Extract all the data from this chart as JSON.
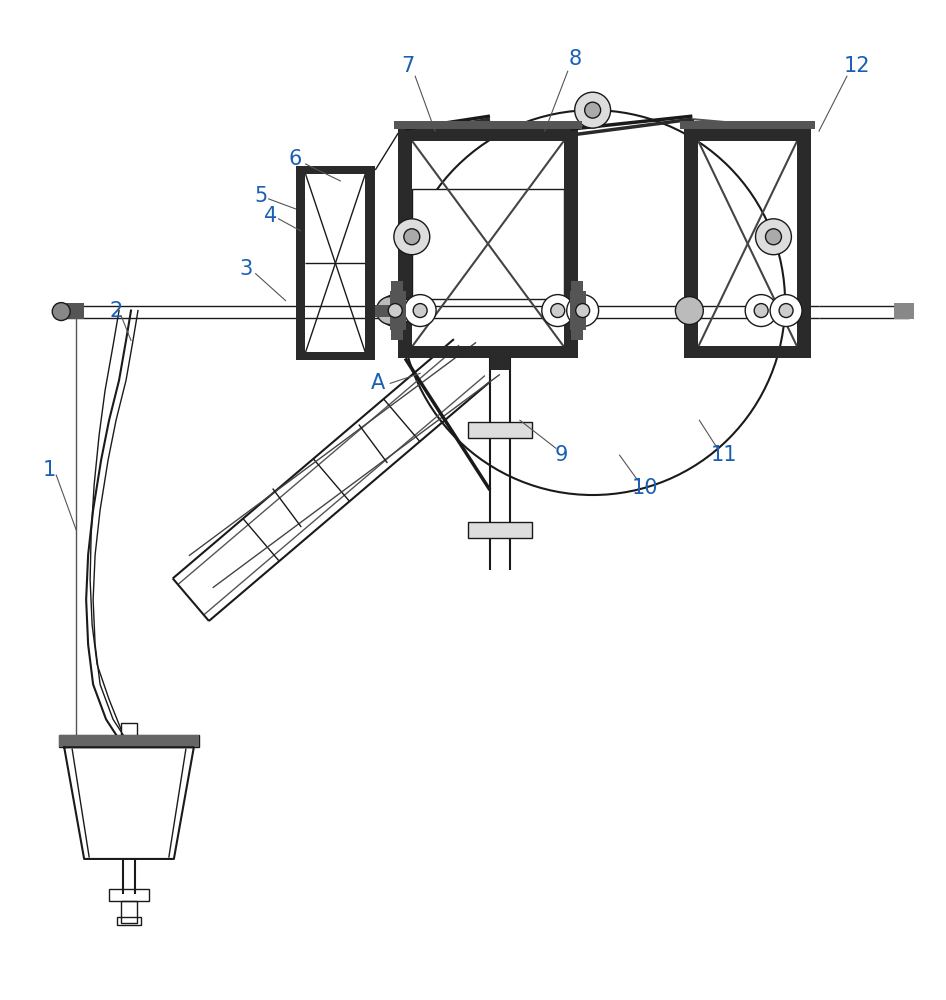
{
  "bg_color": "#ffffff",
  "line_color": "#1a1a1a",
  "label_color": "#1a5fb4",
  "label_fontsize": 15,
  "figsize": [
    9.46,
    10.0
  ],
  "dpi": 100
}
